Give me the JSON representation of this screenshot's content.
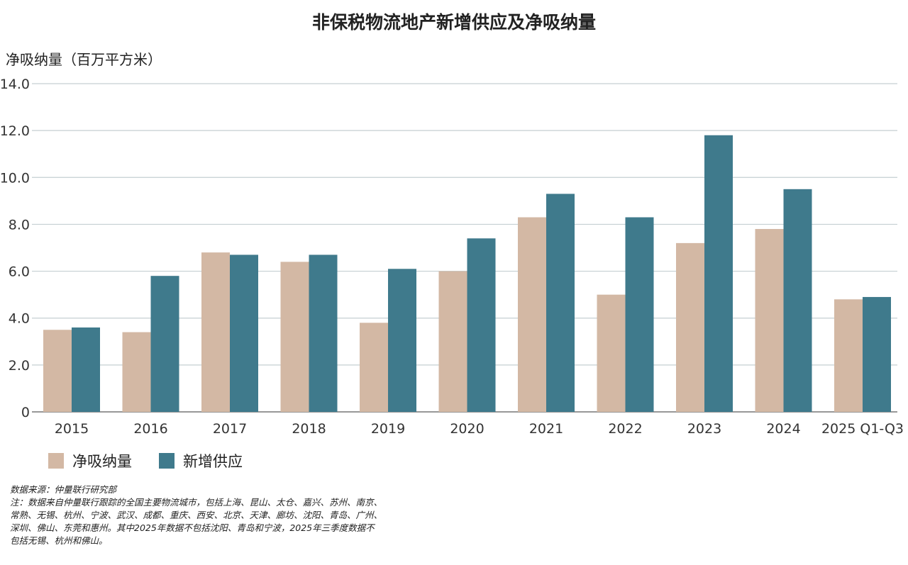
{
  "chart_data": {
    "type": "bar",
    "title": "非保税物流地产新增供应及净吸纳量",
    "ylabel": "净吸纳量（百万平方米）",
    "xlabel": "",
    "ylim": [
      0,
      14
    ],
    "yticks": [
      "0",
      "2.0",
      "4.0",
      "6.0",
      "8.0",
      "10.0",
      "12.0",
      "14.0"
    ],
    "grid": true,
    "legend_position": "bottom-left",
    "categories": [
      "2015",
      "2016",
      "2017",
      "2018",
      "2019",
      "2020",
      "2021",
      "2022",
      "2023",
      "2024",
      "2025 Q1-Q3"
    ],
    "series": [
      {
        "name": "净吸纳量",
        "color": "#d3b8a4",
        "values": [
          3.5,
          3.4,
          6.8,
          6.4,
          3.8,
          6.0,
          8.3,
          5.0,
          7.2,
          7.8,
          4.8
        ]
      },
      {
        "name": "新增供应",
        "color": "#3f7a8c",
        "values": [
          3.6,
          5.8,
          6.7,
          6.7,
          6.1,
          7.4,
          9.3,
          8.3,
          11.8,
          9.5,
          4.9
        ]
      }
    ]
  },
  "notes": {
    "source": "数据来源：仲量联行研究部",
    "lines": [
      "注：数据来自仲量联行跟踪的全国主要物流城市，包括上海、昆山、太仓、嘉兴、苏州、南京、",
      "常熟、无锡、杭州、宁波、武汉、成都、重庆、西安、北京、天津、廊坊、沈阳、青岛、广州、",
      "深圳、佛山、东莞和惠州。其中2025年数据不包括沈阳、青岛和宁波，2025年三季度数据不",
      "包括无锡、杭州和佛山。"
    ]
  }
}
